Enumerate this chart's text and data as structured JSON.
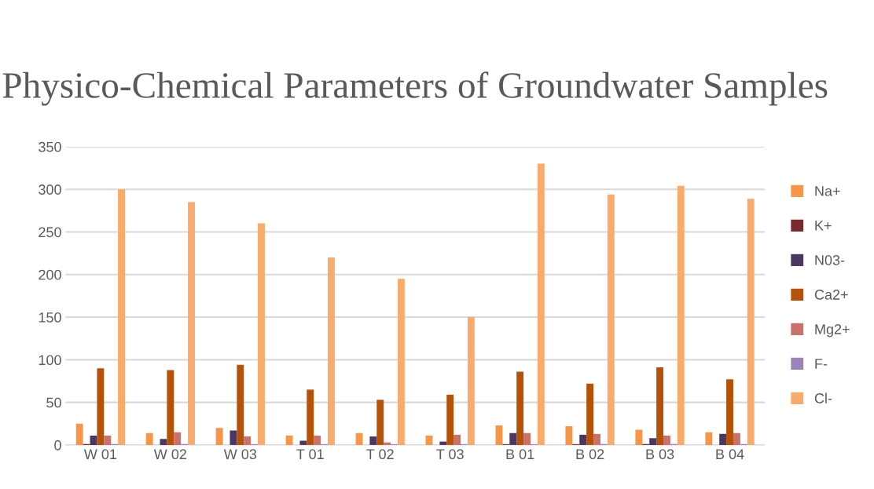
{
  "chart_data": {
    "type": "bar",
    "title": "Physico-Chemical Parameters of Groundwater Samples",
    "categories": [
      "W 01",
      "W 02",
      "W 03",
      "T 01",
      "T 02",
      "T 03",
      "B 01",
      "B 02",
      "B 03",
      "B 04"
    ],
    "series": [
      {
        "name": "Na+",
        "color": "#f79646",
        "values": [
          25,
          14,
          20,
          11,
          14,
          11,
          23,
          22,
          18,
          15
        ]
      },
      {
        "name": "K+",
        "color": "#772c2a",
        "values": [
          1,
          0,
          0,
          0,
          0,
          0,
          1,
          1,
          1,
          0
        ]
      },
      {
        "name": "N03-",
        "color": "#4b3862",
        "values": [
          11,
          7,
          17,
          5,
          10,
          4,
          14,
          12,
          8,
          13
        ]
      },
      {
        "name": "Ca2+",
        "color": "#b65208",
        "values": [
          90,
          88,
          94,
          65,
          53,
          59,
          86,
          72,
          91,
          77
        ]
      },
      {
        "name": "Mg2+",
        "color": "#cb716b",
        "values": [
          11,
          15,
          10,
          11,
          3,
          12,
          14,
          13,
          11,
          14
        ]
      },
      {
        "name": "F-",
        "color": "#9c84b8",
        "values": [
          1,
          1,
          1,
          1,
          1,
          1,
          1,
          1,
          1,
          1
        ]
      },
      {
        "name": "Cl-",
        "color": "#f9ab6b",
        "values": [
          300,
          285,
          260,
          220,
          195,
          150,
          330,
          294,
          304,
          289
        ]
      }
    ],
    "ylim": [
      0,
      350
    ],
    "yticks": [
      0,
      50,
      100,
      150,
      200,
      250,
      300,
      350
    ],
    "grid": "y",
    "legend": "right"
  }
}
